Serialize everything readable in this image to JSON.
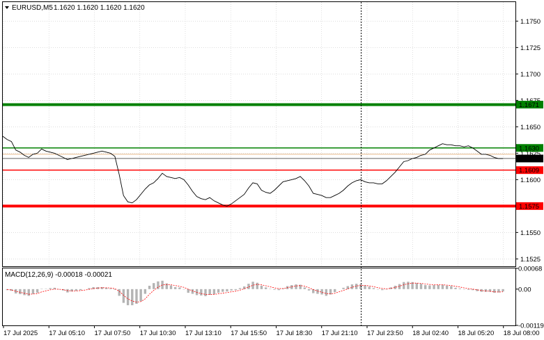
{
  "window": {
    "symbol_label": "EURUSD,M5",
    "ohlc_label": "1.1620 1.1620 1.1620 1.1620"
  },
  "macd": {
    "label": "MACD(12,26,9) -0.00018 -0.00021",
    "axis_ticks": [
      "0.00068",
      "0.00",
      "-0.00119"
    ],
    "ylim": [
      -0.00119,
      0.00068
    ],
    "histogram_color": "#b4b4b4",
    "signal_color": "#ff0000"
  },
  "price_axis": {
    "ticks": [
      "1.1750",
      "1.1725",
      "1.1700",
      "1.1675",
      "1.1650",
      "1.1625",
      "1.1600",
      "1.1575",
      "1.1550",
      "1.1525"
    ],
    "ylim": [
      1.1518,
      1.1768
    ]
  },
  "levels": [
    {
      "label": "1.1671",
      "value": 1.1671,
      "color": "#008000",
      "thick": true
    },
    {
      "label": "1.1630",
      "value": 1.163,
      "color": "#008000",
      "thick": false
    },
    {
      "label": "1.1620",
      "value": 1.162,
      "color": "#000000",
      "thick": false,
      "current": true
    },
    {
      "label": "1.1609",
      "value": 1.1609,
      "color": "#ff0000",
      "thick": false
    },
    {
      "label": "1.1575",
      "value": 1.1575,
      "color": "#ff0000",
      "thick": true
    }
  ],
  "time_axis": {
    "labels": [
      "17 Jul 2025",
      "17 Jul 05:10",
      "17 Jul 07:50",
      "17 Jul 10:30",
      "17 Jul 13:10",
      "17 Jul 15:50",
      "17 Jul 18:30",
      "17 Jul 21:10",
      "17 Jul 23:50",
      "18 Jul 02:40",
      "18 Jul 05:20",
      "18 Jul 08:00"
    ]
  },
  "colors": {
    "grid": "#c8c8c8",
    "price_line": "#000000",
    "background": "#ffffff"
  },
  "chart_data": {
    "type": "line",
    "series": [
      {
        "values": [
          1.1641,
          1.1638,
          1.1636,
          1.1628,
          1.1626,
          1.1623,
          1.1621,
          1.1624,
          1.1625,
          1.1629,
          1.1627,
          1.1626,
          1.1625,
          1.1623,
          1.1621,
          1.1619,
          1.162,
          1.1621,
          1.1622,
          1.1623,
          1.1624,
          1.1625,
          1.1626,
          1.1627,
          1.1626,
          1.1625,
          1.1622,
          1.1605,
          1.1585,
          1.1579,
          1.1578,
          1.1581,
          1.1586,
          1.1591,
          1.1595,
          1.1597,
          1.1601,
          1.1606,
          1.1603,
          1.1602,
          1.1601,
          1.1602,
          1.16,
          1.1595,
          1.1589,
          1.1584,
          1.1582,
          1.1581,
          1.1583,
          1.158,
          1.1578,
          1.1576,
          1.1575,
          1.1577,
          1.158,
          1.1583,
          1.1586,
          1.1592,
          1.1597,
          1.1596,
          1.159,
          1.1588,
          1.1587,
          1.159,
          1.1594,
          1.1598,
          1.1599,
          1.16,
          1.1601,
          1.1603,
          1.1599,
          1.1594,
          1.1587,
          1.1586,
          1.1585,
          1.1583,
          1.1583,
          1.1585,
          1.1587,
          1.159,
          1.1594,
          1.1597,
          1.1599,
          1.16,
          1.1598,
          1.1597,
          1.1597,
          1.1596,
          1.1596,
          1.1599,
          1.1603,
          1.1607,
          1.1612,
          1.1617,
          1.1618,
          1.162,
          1.1621,
          1.1623,
          1.1624,
          1.1628,
          1.163,
          1.1632,
          1.1634,
          1.1633,
          1.1633,
          1.1632,
          1.1632,
          1.1631,
          1.1632,
          1.163,
          1.1627,
          1.1624,
          1.1624,
          1.1623,
          1.1621,
          1.162,
          1.162
        ]
      }
    ]
  }
}
